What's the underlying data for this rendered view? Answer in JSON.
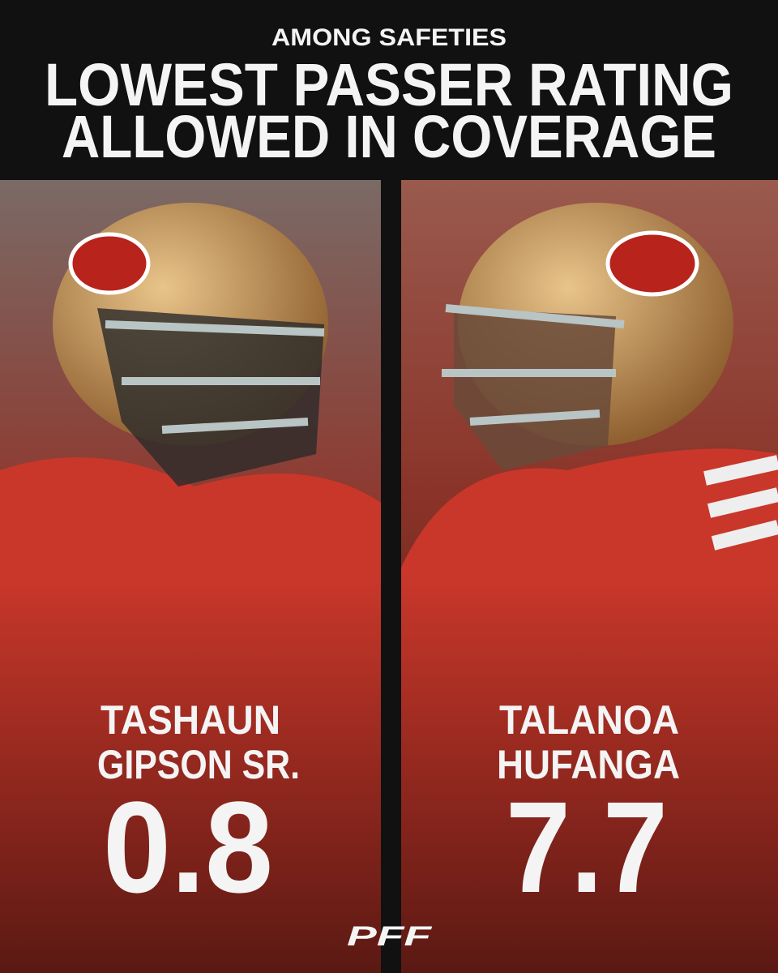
{
  "header": {
    "subtitle": "AMONG SAFETIES",
    "title_lines": [
      "LOWEST PASSER RATING",
      "ALLOWED IN COVERAGE"
    ]
  },
  "players": [
    {
      "name_lines": [
        "TASHAUN",
        "GIPSON SR."
      ],
      "value": 0.8
    },
    {
      "name_lines": [
        "TALANOA",
        "HUFANGA"
      ],
      "value": 7.7
    }
  ],
  "footer": {
    "logo": "PFF"
  }
}
